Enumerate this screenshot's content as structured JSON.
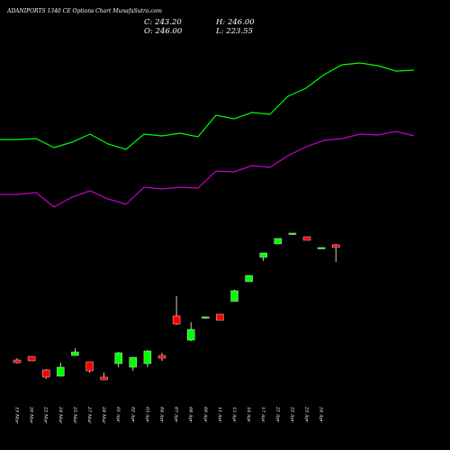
{
  "chart_data": {
    "type": "candlestick",
    "title": "ADANIPORTS 1340  CE Options  Chart MunafaSutra.com",
    "ohlc_labels": {
      "c": "C: 243.20",
      "h": "H: 246.00",
      "o": "O: 246.00",
      "l": "L: 223.55"
    },
    "x_labels": [
      "19 Mar",
      "20 Mar",
      "22 Mar",
      "24 Mar",
      "25 Mar",
      "27 Mar",
      "28 Mar",
      "01 Apr",
      "02 Apr",
      "03 Apr",
      "04 Apr",
      "07 Apr",
      "08 Apr",
      "09 Apr",
      "11 Apr",
      "15 Apr",
      "16 Apr",
      "17 Apr",
      "21 Apr",
      "22 Apr",
      "23 Apr",
      "24 Apr"
    ],
    "y_range": [
      0,
      500
    ],
    "candles": [
      {
        "o": 100,
        "h": 102,
        "l": 96,
        "c": 97,
        "color": "red"
      },
      {
        "o": 104,
        "h": 104,
        "l": 99,
        "c": 99,
        "color": "red"
      },
      {
        "o": 89,
        "h": 90,
        "l": 79,
        "c": 81,
        "color": "red"
      },
      {
        "o": 82,
        "h": 97,
        "l": 82,
        "c": 92,
        "color": "green"
      },
      {
        "o": 105,
        "h": 113,
        "l": 105,
        "c": 109,
        "color": "green"
      },
      {
        "o": 98,
        "h": 98,
        "l": 86,
        "c": 88,
        "color": "red"
      },
      {
        "o": 81,
        "h": 86,
        "l": 78,
        "c": 78,
        "color": "red"
      },
      {
        "o": 96,
        "h": 109,
        "l": 92,
        "c": 108,
        "color": "green"
      },
      {
        "o": 92,
        "h": 103,
        "l": 88,
        "c": 103,
        "color": "green"
      },
      {
        "o": 96,
        "h": 111,
        "l": 92,
        "c": 110,
        "color": "green"
      },
      {
        "o": 105,
        "h": 108,
        "l": 99,
        "c": 102,
        "color": "red"
      },
      {
        "o": 149,
        "h": 171,
        "l": 139,
        "c": 140,
        "color": "red"
      },
      {
        "o": 122,
        "h": 142,
        "l": 121,
        "c": 134,
        "color": "green"
      },
      {
        "o": 147,
        "h": 148,
        "l": 146,
        "c": 148,
        "color": "green"
      },
      {
        "o": 151,
        "h": 151,
        "l": 144,
        "c": 144,
        "color": "red"
      },
      {
        "o": 165,
        "h": 178,
        "l": 165,
        "c": 177,
        "color": "green"
      },
      {
        "o": 187,
        "h": 194,
        "l": 187,
        "c": 194,
        "color": "green"
      },
      {
        "o": 214,
        "h": 219,
        "l": 210,
        "c": 219,
        "color": "green"
      },
      {
        "o": 229,
        "h": 235,
        "l": 229,
        "c": 235,
        "color": "green"
      },
      {
        "o": 240,
        "h": 241,
        "l": 239,
        "c": 241,
        "color": "green"
      },
      {
        "o": 237,
        "h": 237,
        "l": 233,
        "c": 233,
        "color": "red"
      },
      {
        "o": 224,
        "h": 225,
        "l": 224,
        "c": 225,
        "color": "green"
      },
      {
        "o": 228,
        "h": 229,
        "l": 209,
        "c": 225,
        "color": "red"
      }
    ],
    "series": [
      {
        "values": [
          345,
          345,
          346,
          336,
          342,
          351,
          340,
          334,
          351,
          349,
          352,
          348,
          372,
          368,
          375,
          373,
          393,
          402,
          417,
          428,
          430,
          427,
          421,
          422
        ],
        "color": "#00ff00"
      },
      {
        "values": [
          284,
          284,
          286,
          270,
          281,
          288,
          279,
          273,
          292,
          290,
          292,
          291,
          310,
          309,
          316,
          314,
          327,
          337,
          344,
          346,
          351,
          350,
          354,
          349
        ],
        "color": "#cc00cc"
      }
    ]
  }
}
